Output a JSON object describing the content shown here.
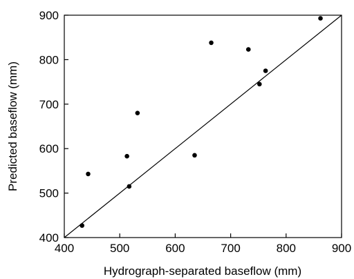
{
  "chart_data": {
    "type": "scatter",
    "xlabel": "Hydrograph-separated baseflow (mm)",
    "ylabel": "Predicted baseflow (mm)",
    "xlim": [
      400,
      900
    ],
    "ylim": [
      400,
      900
    ],
    "xticks": [
      "400",
      "500",
      "600",
      "700",
      "800",
      "900"
    ],
    "yticks": [
      "400",
      "500",
      "600",
      "700",
      "800",
      "900"
    ],
    "grid": false,
    "reference_line": {
      "type": "1:1",
      "from": [
        400,
        400
      ],
      "to": [
        900,
        900
      ]
    },
    "series": [
      {
        "points": [
          {
            "x": 432,
            "y": 427
          },
          {
            "x": 443,
            "y": 543
          },
          {
            "x": 513,
            "y": 583
          },
          {
            "x": 517,
            "y": 515
          },
          {
            "x": 532,
            "y": 680
          },
          {
            "x": 635,
            "y": 585
          },
          {
            "x": 665,
            "y": 838
          },
          {
            "x": 732,
            "y": 823
          },
          {
            "x": 752,
            "y": 745
          },
          {
            "x": 763,
            "y": 775
          },
          {
            "x": 862,
            "y": 893
          }
        ]
      }
    ],
    "colors": {
      "marker": "#000000",
      "line": "#000000",
      "axes": "#000000"
    }
  }
}
